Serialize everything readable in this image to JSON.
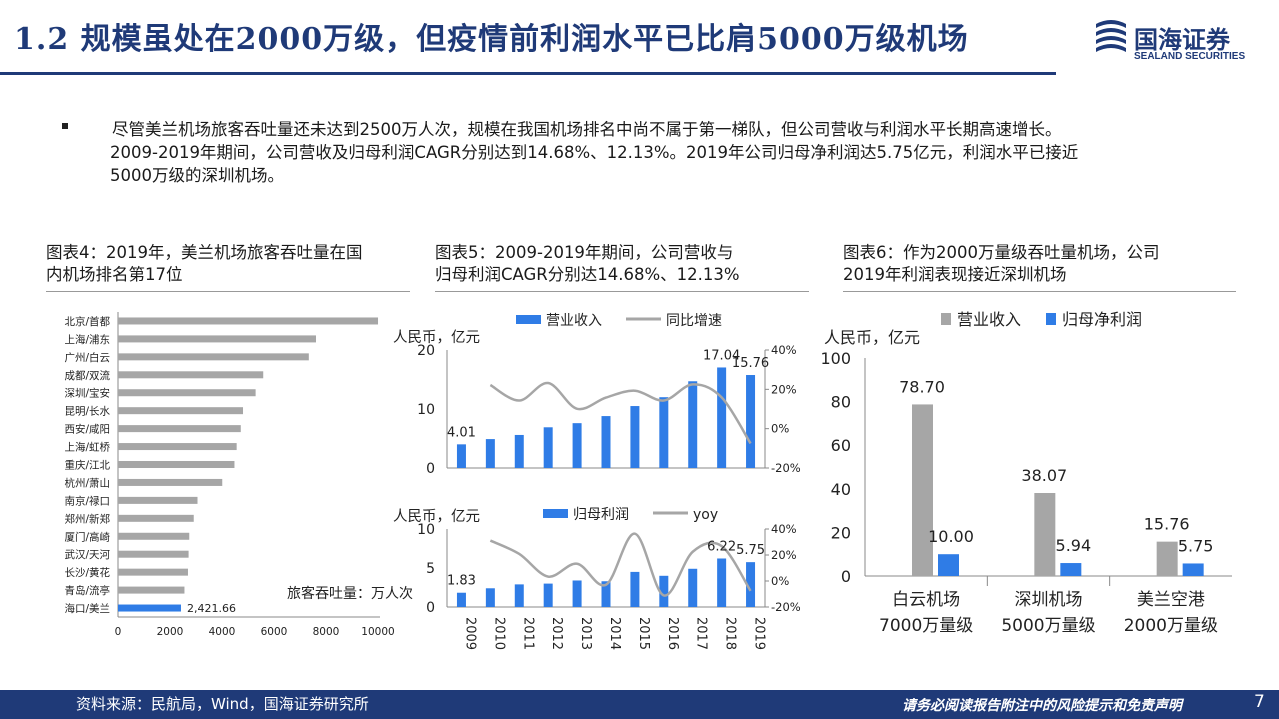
{
  "header": {
    "title": "1.2 规模虽处在2000万级，但疫情前利润水平已比肩5000万级机场",
    "logo_cn": "国海证券",
    "logo_en": "SEALAND SECURITIES"
  },
  "bullet": {
    "line1": "尽管美兰机场旅客吞吐量还未达到2500万人次，规模在我国机场排名中尚不属于第一梯队，但公司营收与利润水平长期高速增长。",
    "line2": "2009-2019年期间，公司营收及归母利润CAGR分别达到14.68%、12.13%。2019年公司归母净利润达5.75亿元，利润水平已接近",
    "line3": "5000万级的深圳机场。"
  },
  "captions": {
    "fig4_l1": "图表4：2019年，美兰机场旅客吞吐量在国",
    "fig4_l2": "内机场排名第17位",
    "fig5_l1": "图表5：2009-2019年期间，公司营收与",
    "fig5_l2": "归母利润CAGR分别达14.68%、12.13%",
    "fig6_l1": "图表6：作为2000万量级吞吐量机场，公司",
    "fig6_l2": "2019年利润表现接近深圳机场"
  },
  "chart_data": [
    {
      "type": "bar",
      "orientation": "horizontal",
      "categories": [
        "北京/首都",
        "上海/浦东",
        "广州/白云",
        "成都/双流",
        "深圳/宝安",
        "昆明/长水",
        "西安/咸阳",
        "上海/虹桥",
        "重庆/江北",
        "杭州/萧山",
        "南京/禄口",
        "郑州/新郑",
        "厦门/高崎",
        "武汉/天河",
        "长沙/黄花",
        "青岛/流亭",
        "海口/美兰"
      ],
      "values": [
        10001,
        7615,
        7339,
        5586,
        5293,
        4808,
        4722,
        4564,
        4479,
        4010,
        3058,
        2913,
        2741,
        2715,
        2691,
        2556,
        2421.66
      ],
      "highlight_index": 16,
      "highlight_label": "2,421.66",
      "series_label": "旅客吞吐量：万人次",
      "xlim": [
        0,
        10000
      ],
      "xticks": [
        "0",
        "2000",
        "4000",
        "6000",
        "8000",
        "10000"
      ],
      "colors": {
        "normal": "#a6a6a6",
        "highlight": "#2f7ce6"
      }
    },
    {
      "type": "bar+line",
      "categories": [
        "2009",
        "2010",
        "2011",
        "2012",
        "2013",
        "2014",
        "2015",
        "2016",
        "2017",
        "2018",
        "2019"
      ],
      "ylabel": "人民币，亿元",
      "ylim": [
        0,
        20
      ],
      "yticks": [
        "0",
        "10",
        "20"
      ],
      "y2lim": [
        -20,
        40
      ],
      "y2ticks": [
        "-20%",
        "0%",
        "20%",
        "40%"
      ],
      "series": [
        {
          "name": "营业收入",
          "kind": "bar",
          "values": [
            4.01,
            4.9,
            5.6,
            6.9,
            7.6,
            8.8,
            10.5,
            12.0,
            14.7,
            17.04,
            15.76
          ],
          "color": "#2f7ce6"
        },
        {
          "name": "同比增速",
          "kind": "line",
          "axis": "right",
          "values": [
            null,
            22.2,
            14.3,
            23.2,
            10.1,
            15.8,
            19.3,
            14.3,
            22.5,
            15.9,
            -7.5
          ],
          "color": "#a6a6a6"
        }
      ],
      "labels": [
        {
          "index": 0,
          "text": "4.01"
        },
        {
          "index": 9,
          "text": "17.04"
        },
        {
          "index": 10,
          "text": "15.76"
        }
      ]
    },
    {
      "type": "bar+line",
      "categories": [
        "2009",
        "2010",
        "2011",
        "2012",
        "2013",
        "2014",
        "2015",
        "2016",
        "2017",
        "2018",
        "2019"
      ],
      "ylabel": "人民币，亿元",
      "ylim": [
        0,
        10
      ],
      "yticks": [
        "0",
        "5",
        "10"
      ],
      "y2lim": [
        -20,
        40
      ],
      "y2ticks": [
        "-20%",
        "0%",
        "20%",
        "40%"
      ],
      "series": [
        {
          "name": "归母利润",
          "kind": "bar",
          "values": [
            1.83,
            2.4,
            2.9,
            3.0,
            3.4,
            3.3,
            4.5,
            4.0,
            4.9,
            6.22,
            5.75
          ],
          "color": "#2f7ce6"
        },
        {
          "name": "yoy",
          "kind": "line",
          "axis": "right",
          "values": [
            null,
            31.1,
            20.8,
            3.4,
            13.3,
            -2.9,
            36.4,
            -11.1,
            22.5,
            26.9,
            -7.6
          ],
          "color": "#a6a6a6"
        }
      ],
      "labels": [
        {
          "index": 0,
          "text": "1.83"
        },
        {
          "index": 9,
          "text": "6.22"
        },
        {
          "index": 10,
          "text": "5.75"
        }
      ]
    },
    {
      "type": "bar",
      "categories": [
        "白云机场",
        "深圳机场",
        "美兰空港"
      ],
      "category_sublabels": [
        "7000万量级",
        "5000万量级",
        "2000万量级"
      ],
      "ylabel": "人民币，亿元",
      "ylim": [
        0,
        100
      ],
      "yticks": [
        "0",
        "20",
        "40",
        "60",
        "80",
        "100"
      ],
      "series": [
        {
          "name": "营业收入",
          "values": [
            78.7,
            38.07,
            15.76
          ],
          "labels": [
            "78.70",
            "38.07",
            "15.76"
          ],
          "color": "#a6a6a6"
        },
        {
          "name": "归母净利润",
          "values": [
            10.0,
            5.94,
            5.75
          ],
          "labels": [
            "10.00",
            "5.94",
            "5.75"
          ],
          "color": "#2f7ce6"
        }
      ]
    }
  ],
  "footer": {
    "source": "资料来源：民航局，Wind，国海证券研究所",
    "disclaimer": "请务必阅读报告附注中的风险提示和免责声明",
    "page": "7"
  }
}
